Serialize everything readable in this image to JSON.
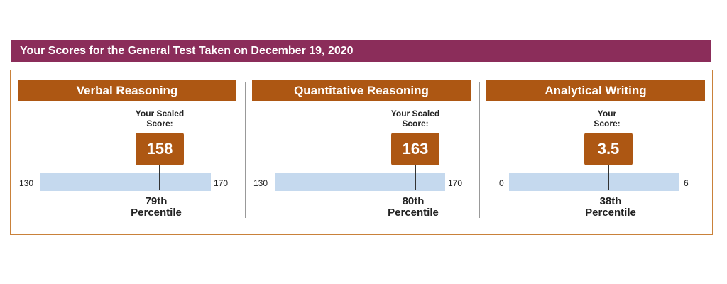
{
  "header": {
    "title": "Your Scores for the General Test Taken on December 19, 2020"
  },
  "sections": [
    {
      "title": "Verbal Reasoning",
      "caption": "Your Scaled\nScore:",
      "score": "158",
      "min_label": "130",
      "max_label": "170",
      "scale_min": 130,
      "scale_max": 170,
      "score_value": 158,
      "percentile_value": "79th",
      "percentile_word": "Percentile"
    },
    {
      "title": "Quantitative Reasoning",
      "caption": "Your Scaled\nScore:",
      "score": "163",
      "min_label": "130",
      "max_label": "170",
      "scale_min": 130,
      "scale_max": 170,
      "score_value": 163,
      "percentile_value": "80th",
      "percentile_word": "Percentile"
    },
    {
      "title": "Analytical Writing",
      "caption": "Your\nScore:",
      "score": "3.5",
      "min_label": "0",
      "max_label": "6",
      "scale_min": 0,
      "scale_max": 6,
      "score_value": 3.5,
      "percentile_value": "38th",
      "percentile_word": "Percentile"
    }
  ],
  "colors": {
    "header_bg": "#8b2d5a",
    "section_header_bg": "#ad5713",
    "score_box_bg": "#ad5713",
    "track_bg": "#c5d9ee",
    "panel_border": "#c9813a"
  }
}
